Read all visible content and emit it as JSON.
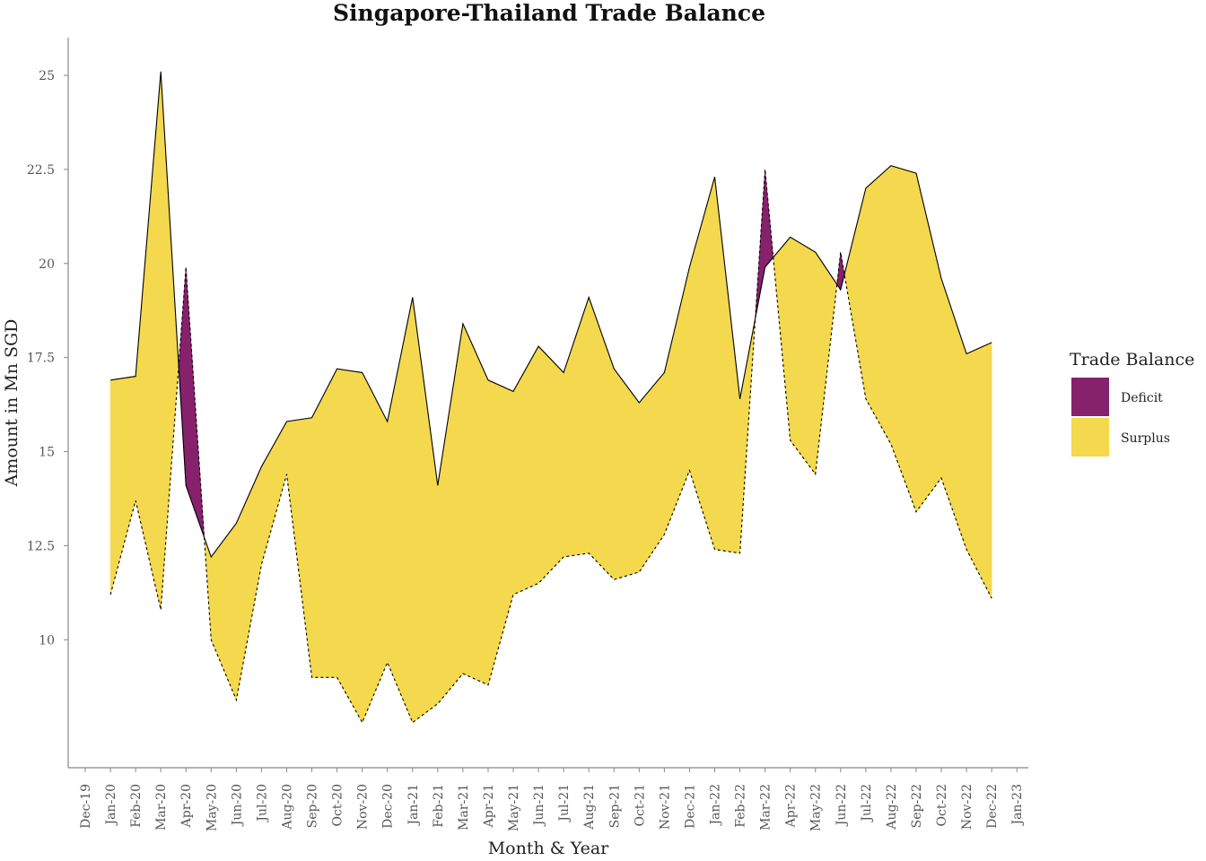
{
  "chart_data": {
    "type": "area",
    "title": "Singapore-Thailand Trade Balance",
    "xlabel": "Month & Year",
    "ylabel": "Amount in Mn SGD",
    "x_tick_labels": [
      "Dec-19",
      "Jan-20",
      "Feb-20",
      "Mar-20",
      "Apr-20",
      "May-20",
      "Jun-20",
      "Jul-20",
      "Aug-20",
      "Sep-20",
      "Oct-20",
      "Nov-20",
      "Dec-20",
      "Jan-21",
      "Feb-21",
      "Mar-21",
      "Apr-21",
      "May-21",
      "Jun-21",
      "Jul-21",
      "Aug-21",
      "Sep-21",
      "Oct-21",
      "Nov-21",
      "Dec-21",
      "Jan-22",
      "Feb-22",
      "Mar-22",
      "Apr-22",
      "May-22",
      "Jun-22",
      "Jul-22",
      "Aug-22",
      "Sep-22",
      "Oct-22",
      "Nov-22",
      "Dec-22",
      "Jan-23"
    ],
    "y_ticks": [
      10,
      12.5,
      15,
      17.5,
      20,
      22.5,
      25
    ],
    "y_tick_labels": [
      "10",
      "12.5",
      "15",
      "17.5",
      "20",
      "22.5",
      "25"
    ],
    "ylim": [
      6.6,
      26.0
    ],
    "grid": false,
    "legend_position": "right",
    "categories": [
      "Jan-20",
      "Feb-20",
      "Mar-20",
      "Apr-20",
      "May-20",
      "Jun-20",
      "Jul-20",
      "Aug-20",
      "Sep-20",
      "Oct-20",
      "Nov-20",
      "Dec-20",
      "Jan-21",
      "Feb-21",
      "Mar-21",
      "Apr-21",
      "May-21",
      "Jun-21",
      "Jul-21",
      "Aug-21",
      "Sep-21",
      "Oct-21",
      "Nov-21",
      "Dec-21",
      "Jan-22",
      "Feb-22",
      "Mar-22",
      "Apr-22",
      "May-22",
      "Jun-22",
      "Jul-22",
      "Aug-22",
      "Sep-22",
      "Oct-22",
      "Nov-22",
      "Dec-22"
    ],
    "series": [
      {
        "line": "solid",
        "values": [
          16.9,
          17.0,
          25.1,
          14.1,
          12.2,
          13.1,
          14.6,
          15.8,
          15.9,
          17.2,
          17.1,
          15.8,
          19.1,
          14.1,
          18.4,
          16.9,
          16.6,
          17.8,
          17.1,
          19.1,
          17.2,
          16.3,
          17.1,
          19.9,
          22.3,
          16.4,
          19.9,
          20.7,
          20.3,
          19.3,
          22.0,
          22.6,
          22.4,
          19.6,
          17.6,
          17.9
        ]
      },
      {
        "line": "dashed",
        "values": [
          11.2,
          13.7,
          10.8,
          19.9,
          10.0,
          8.4,
          12.0,
          14.4,
          9.0,
          9.0,
          7.8,
          9.4,
          7.8,
          8.3,
          9.1,
          8.8,
          11.2,
          11.5,
          12.2,
          12.3,
          11.6,
          11.8,
          12.8,
          14.5,
          12.4,
          12.3,
          22.5,
          15.3,
          14.4,
          20.3,
          16.4,
          15.2,
          13.4,
          14.3,
          12.4,
          11.1
        ]
      }
    ],
    "legend": {
      "title": "Trade Balance",
      "items": [
        {
          "label": "Deficit",
          "color": "#86216B"
        },
        {
          "label": "Surplus",
          "color": "#F4D84E"
        }
      ]
    },
    "colors": {
      "deficit": "#86216B",
      "surplus": "#F4D84E",
      "axis": "#888888"
    }
  }
}
